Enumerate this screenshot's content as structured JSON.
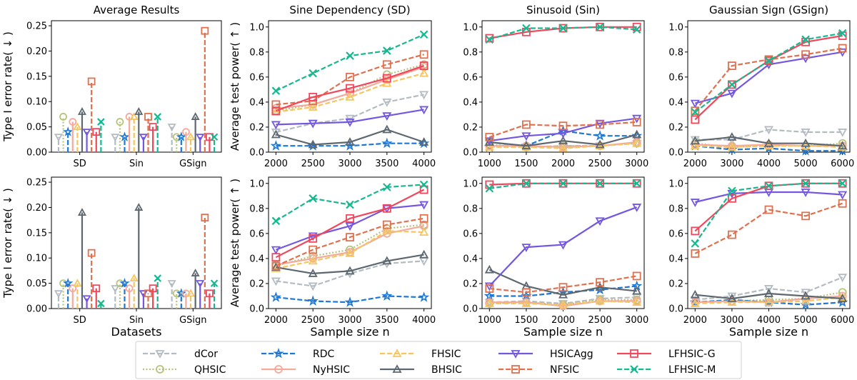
{
  "colors": {
    "dCor": "#b4bcc2",
    "QHSIC": "#b7c27a",
    "RDC": "#1f77d4",
    "NyHSIC": "#f4a99b",
    "FHSIC": "#f7c560",
    "BHSIC": "#5c6770",
    "HSICAgg": "#7357e0",
    "NFSIC": "#e0714f",
    "LFHSIC-G": "#f0475c",
    "LFHSIC-M": "#17b890"
  },
  "legend": [
    {
      "name": "dCor",
      "style": "dashed",
      "marker": "triangle-down"
    },
    {
      "name": "QHSIC",
      "style": "dotted",
      "marker": "circle"
    },
    {
      "name": "RDC",
      "style": "dashed",
      "marker": "star"
    },
    {
      "name": "NyHSIC",
      "style": "solid",
      "marker": "circle"
    },
    {
      "name": "FHSIC",
      "style": "dashed",
      "marker": "triangle-up"
    },
    {
      "name": "BHSIC",
      "style": "solid",
      "marker": "triangle-up"
    },
    {
      "name": "HSICAgg",
      "style": "solid",
      "marker": "triangle-down"
    },
    {
      "name": "NFSIC",
      "style": "dashed",
      "marker": "square"
    },
    {
      "name": "LFHSIC-G",
      "style": "solid",
      "marker": "square"
    },
    {
      "name": "LFHSIC-M",
      "style": "dashed",
      "marker": "x"
    }
  ],
  "chart_data": [
    {
      "type": "bar",
      "title": "Average Results",
      "xlabel": "",
      "ylabel": "Type I error rate( ↓ )",
      "ylim": [
        0,
        0.26
      ],
      "yticks": [
        0.0,
        0.05,
        0.1,
        0.15,
        0.2,
        0.25
      ],
      "categories": [
        "SD",
        "Sin",
        "GSign"
      ],
      "series": [
        {
          "name": "dCor",
          "values": [
            0.03,
            0.03,
            0.05
          ]
        },
        {
          "name": "QHSIC",
          "values": [
            0.07,
            0.06,
            0.03
          ]
        },
        {
          "name": "RDC",
          "values": [
            0.04,
            0.03,
            0.03
          ]
        },
        {
          "name": "NyHSIC",
          "values": [
            0.06,
            0.07,
            0.04
          ]
        },
        {
          "name": "FHSIC",
          "values": [
            0.05,
            0.07,
            0.03
          ]
        },
        {
          "name": "BHSIC",
          "values": [
            0.08,
            0.08,
            0.07
          ]
        },
        {
          "name": "HSICAgg",
          "values": [
            0.04,
            0.03,
            0.03
          ]
        },
        {
          "name": "NFSIC",
          "values": [
            0.14,
            0.07,
            0.24
          ]
        },
        {
          "name": "LFHSIC-G",
          "values": [
            0.04,
            0.05,
            0.03
          ]
        },
        {
          "name": "LFHSIC-M",
          "values": [
            0.06,
            0.07,
            0.03
          ]
        }
      ]
    },
    {
      "type": "line",
      "title": "Sine Dependency (SD)",
      "xlabel": "",
      "ylabel": "Average test power( ↑ )",
      "ylim": [
        0,
        1.05
      ],
      "yticks": [
        0.0,
        0.2,
        0.4,
        0.6,
        0.8,
        1.0
      ],
      "x": [
        2000,
        2500,
        3000,
        3500,
        4000
      ],
      "xlim": [
        1900,
        4100
      ],
      "series": [
        {
          "name": "dCor",
          "values": [
            0.16,
            0.23,
            0.27,
            0.4,
            0.46
          ]
        },
        {
          "name": "QHSIC",
          "values": [
            0.33,
            0.38,
            0.47,
            0.62,
            0.7
          ]
        },
        {
          "name": "RDC",
          "values": [
            0.05,
            0.05,
            0.05,
            0.07,
            0.07
          ]
        },
        {
          "name": "NyHSIC",
          "values": [
            0.35,
            0.38,
            0.47,
            0.58,
            0.68
          ]
        },
        {
          "name": "FHSIC",
          "values": [
            0.32,
            0.36,
            0.44,
            0.55,
            0.63
          ]
        },
        {
          "name": "BHSIC",
          "values": [
            0.14,
            0.06,
            0.08,
            0.18,
            0.08
          ]
        },
        {
          "name": "HSICAgg",
          "values": [
            0.22,
            0.23,
            0.24,
            0.29,
            0.34
          ]
        },
        {
          "name": "NFSIC",
          "values": [
            0.38,
            0.41,
            0.6,
            0.7,
            0.78
          ]
        },
        {
          "name": "LFHSIC-G",
          "values": [
            0.33,
            0.44,
            0.51,
            0.59,
            0.69
          ]
        },
        {
          "name": "LFHSIC-M",
          "values": [
            0.49,
            0.63,
            0.77,
            0.81,
            0.94
          ]
        }
      ]
    },
    {
      "type": "line",
      "title": "Sinusoid (Sin)",
      "xlabel": "",
      "ylabel": "",
      "ylim": [
        0,
        1.05
      ],
      "yticks": [
        0.0,
        0.2,
        0.4,
        0.6,
        0.8,
        1.0
      ],
      "x": [
        1000,
        1500,
        2000,
        2500,
        3000
      ],
      "xlim": [
        900,
        3100
      ],
      "series": [
        {
          "name": "dCor",
          "values": [
            0.08,
            0.04,
            0.05,
            0.05,
            0.07
          ]
        },
        {
          "name": "QHSIC",
          "values": [
            0.06,
            0.04,
            0.05,
            0.05,
            0.07
          ]
        },
        {
          "name": "RDC",
          "values": [
            0.04,
            0.05,
            0.17,
            0.13,
            0.13
          ]
        },
        {
          "name": "NyHSIC",
          "values": [
            0.05,
            0.05,
            0.04,
            0.05,
            0.08
          ]
        },
        {
          "name": "FHSIC",
          "values": [
            0.04,
            0.04,
            0.03,
            0.05,
            0.07
          ]
        },
        {
          "name": "BHSIC",
          "values": [
            0.08,
            0.05,
            0.09,
            0.06,
            0.14
          ]
        },
        {
          "name": "HSICAgg",
          "values": [
            0.09,
            0.13,
            0.15,
            0.23,
            0.27
          ]
        },
        {
          "name": "NFSIC",
          "values": [
            0.12,
            0.22,
            0.21,
            0.22,
            0.24
          ]
        },
        {
          "name": "LFHSIC-G",
          "values": [
            0.91,
            0.96,
            0.99,
            1.0,
            1.0
          ]
        },
        {
          "name": "LFHSIC-M",
          "values": [
            0.9,
            0.99,
            0.99,
            1.0,
            0.98
          ]
        }
      ]
    },
    {
      "type": "line",
      "title": "Gaussian Sign (GSign)",
      "xlabel": "",
      "ylabel": "",
      "ylim": [
        0,
        1.05
      ],
      "yticks": [
        0.0,
        0.2,
        0.4,
        0.6,
        0.8,
        1.0
      ],
      "x": [
        2000,
        3000,
        4000,
        5000,
        6000
      ],
      "xlim": [
        1800,
        6200
      ],
      "series": [
        {
          "name": "dCor",
          "values": [
            0.1,
            0.1,
            0.18,
            0.16,
            0.16
          ]
        },
        {
          "name": "QHSIC",
          "values": [
            0.07,
            0.04,
            0.05,
            0.05,
            0.07
          ]
        },
        {
          "name": "RDC",
          "values": [
            0.05,
            0.02,
            0.03,
            0.01,
            0.01
          ]
        },
        {
          "name": "NyHSIC",
          "values": [
            0.06,
            0.05,
            0.06,
            0.05,
            0.05
          ]
        },
        {
          "name": "FHSIC",
          "values": [
            0.05,
            0.04,
            0.05,
            0.05,
            0.04
          ]
        },
        {
          "name": "BHSIC",
          "values": [
            0.09,
            0.12,
            0.07,
            0.07,
            0.05
          ]
        },
        {
          "name": "HSICAgg",
          "values": [
            0.39,
            0.47,
            0.7,
            0.75,
            0.8
          ]
        },
        {
          "name": "NFSIC",
          "values": [
            0.33,
            0.69,
            0.74,
            0.78,
            0.83
          ]
        },
        {
          "name": "LFHSIC-G",
          "values": [
            0.26,
            0.54,
            0.73,
            0.88,
            0.93
          ]
        },
        {
          "name": "LFHSIC-M",
          "values": [
            0.32,
            0.54,
            0.73,
            0.9,
            0.95
          ]
        }
      ]
    },
    {
      "type": "bar",
      "title": "",
      "xlabel": "Datasets",
      "ylabel": "Type I error rate( ↓ )",
      "ylim": [
        0,
        0.26
      ],
      "yticks": [
        0.0,
        0.05,
        0.1,
        0.15,
        0.2,
        0.25
      ],
      "categories": [
        "SD",
        "Sin",
        "GSign"
      ],
      "series": [
        {
          "name": "dCor",
          "values": [
            0.03,
            0.04,
            0.05
          ]
        },
        {
          "name": "QHSIC",
          "values": [
            0.05,
            0.05,
            0.03
          ]
        },
        {
          "name": "RDC",
          "values": [
            0.05,
            0.05,
            0.03
          ]
        },
        {
          "name": "NyHSIC",
          "values": [
            0.04,
            0.04,
            0.03
          ]
        },
        {
          "name": "FHSIC",
          "values": [
            0.05,
            0.06,
            0.03
          ]
        },
        {
          "name": "BHSIC",
          "values": [
            0.19,
            0.2,
            0.07
          ]
        },
        {
          "name": "HSICAgg",
          "values": [
            0.02,
            0.03,
            0.05
          ]
        },
        {
          "name": "NFSIC",
          "values": [
            0.11,
            0.03,
            0.18
          ]
        },
        {
          "name": "LFHSIC-G",
          "values": [
            0.04,
            0.04,
            0.03
          ]
        },
        {
          "name": "LFHSIC-M",
          "values": [
            0.01,
            0.06,
            0.05
          ]
        }
      ]
    },
    {
      "type": "line",
      "title": "",
      "xlabel": "Sample size n",
      "ylabel": "Average test power( ↑ )",
      "ylim": [
        0,
        1.05
      ],
      "yticks": [
        0.0,
        0.2,
        0.4,
        0.6,
        0.8,
        1.0
      ],
      "x": [
        2000,
        2500,
        3000,
        3500,
        4000
      ],
      "xlim": [
        1900,
        4100
      ],
      "series": [
        {
          "name": "dCor",
          "values": [
            0.22,
            0.18,
            0.28,
            0.36,
            0.38
          ]
        },
        {
          "name": "QHSIC",
          "values": [
            0.34,
            0.42,
            0.47,
            0.64,
            0.67
          ]
        },
        {
          "name": "RDC",
          "values": [
            0.09,
            0.06,
            0.05,
            0.1,
            0.09
          ]
        },
        {
          "name": "NyHSIC",
          "values": [
            0.35,
            0.4,
            0.45,
            0.6,
            0.66
          ]
        },
        {
          "name": "FHSIC",
          "values": [
            0.32,
            0.38,
            0.44,
            0.62,
            0.61
          ]
        },
        {
          "name": "BHSIC",
          "values": [
            0.33,
            0.28,
            0.3,
            0.38,
            0.43
          ]
        },
        {
          "name": "HSICAgg",
          "values": [
            0.47,
            0.58,
            0.66,
            0.8,
            0.83
          ]
        },
        {
          "name": "NFSIC",
          "values": [
            0.34,
            0.47,
            0.57,
            0.67,
            0.72
          ]
        },
        {
          "name": "LFHSIC-G",
          "values": [
            0.41,
            0.56,
            0.72,
            0.8,
            0.95
          ]
        },
        {
          "name": "LFHSIC-M",
          "values": [
            0.7,
            0.88,
            0.83,
            0.97,
            0.99
          ]
        }
      ]
    },
    {
      "type": "line",
      "title": "",
      "xlabel": "Sample size n",
      "ylabel": "",
      "ylim": [
        0,
        1.05
      ],
      "yticks": [
        0.0,
        0.2,
        0.4,
        0.6,
        0.8,
        1.0
      ],
      "x": [
        1000,
        1500,
        2000,
        2500,
        3000
      ],
      "xlim": [
        900,
        3100
      ],
      "series": [
        {
          "name": "dCor",
          "values": [
            0.05,
            0.06,
            0.04,
            0.08,
            0.09
          ]
        },
        {
          "name": "QHSIC",
          "values": [
            0.04,
            0.05,
            0.03,
            0.07,
            0.07
          ]
        },
        {
          "name": "RDC",
          "values": [
            0.1,
            0.1,
            0.13,
            0.15,
            0.18
          ]
        },
        {
          "name": "NyHSIC",
          "values": [
            0.05,
            0.05,
            0.02,
            0.06,
            0.06
          ]
        },
        {
          "name": "FHSIC",
          "values": [
            0.04,
            0.04,
            0.03,
            0.06,
            0.05
          ]
        },
        {
          "name": "BHSIC",
          "values": [
            0.31,
            0.18,
            0.11,
            0.17,
            0.14
          ]
        },
        {
          "name": "HSICAgg",
          "values": [
            0.18,
            0.49,
            0.51,
            0.7,
            0.81
          ]
        },
        {
          "name": "NFSIC",
          "values": [
            0.16,
            0.13,
            0.17,
            0.21,
            0.26
          ]
        },
        {
          "name": "LFHSIC-G",
          "values": [
            0.99,
            1.0,
            1.0,
            1.0,
            1.0
          ]
        },
        {
          "name": "LFHSIC-M",
          "values": [
            0.96,
            1.0,
            1.0,
            1.0,
            1.0
          ]
        }
      ]
    },
    {
      "type": "line",
      "title": "",
      "xlabel": "Sample size n",
      "ylabel": "",
      "ylim": [
        0,
        1.05
      ],
      "yticks": [
        0.0,
        0.2,
        0.4,
        0.6,
        0.8,
        1.0
      ],
      "x": [
        2000,
        3000,
        4000,
        5000,
        6000
      ],
      "xlim": [
        1800,
        6200
      ],
      "series": [
        {
          "name": "dCor",
          "values": [
            0.07,
            0.1,
            0.16,
            0.13,
            0.25
          ]
        },
        {
          "name": "QHSIC",
          "values": [
            0.05,
            0.06,
            0.07,
            0.08,
            0.13
          ]
        },
        {
          "name": "RDC",
          "values": [
            0.05,
            0.07,
            0.05,
            0.03,
            0.05
          ]
        },
        {
          "name": "NyHSIC",
          "values": [
            0.05,
            0.06,
            0.05,
            0.08,
            0.1
          ]
        },
        {
          "name": "FHSIC",
          "values": [
            0.04,
            0.05,
            0.05,
            0.06,
            0.09
          ]
        },
        {
          "name": "BHSIC",
          "values": [
            0.11,
            0.08,
            0.12,
            0.1,
            0.08
          ]
        },
        {
          "name": "HSICAgg",
          "values": [
            0.85,
            0.92,
            0.93,
            0.93,
            0.91
          ]
        },
        {
          "name": "NFSIC",
          "values": [
            0.44,
            0.59,
            0.79,
            0.74,
            0.84
          ]
        },
        {
          "name": "LFHSIC-G",
          "values": [
            0.62,
            0.88,
            0.98,
            1.0,
            1.0
          ]
        },
        {
          "name": "LFHSIC-M",
          "values": [
            0.52,
            0.94,
            0.98,
            1.0,
            1.0
          ]
        }
      ]
    }
  ]
}
